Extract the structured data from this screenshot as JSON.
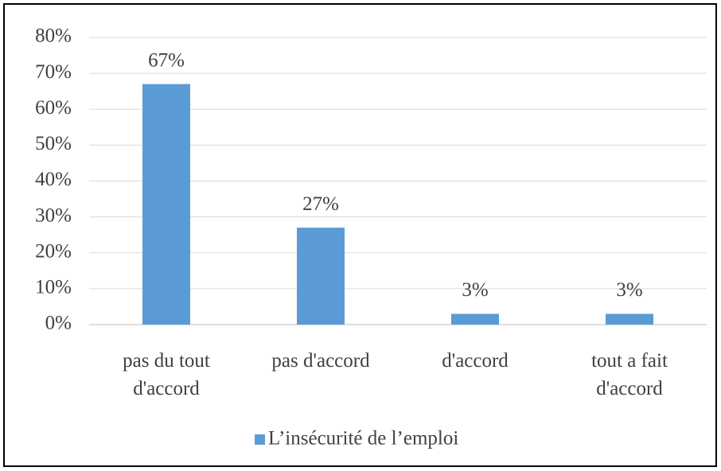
{
  "chart_data": {
    "type": "bar",
    "categories": [
      "pas du tout d'accord",
      "pas d'accord",
      "d'accord",
      "tout a fait d'accord"
    ],
    "series": [
      {
        "name": "L’insécurité de l’emploi",
        "color": "#5b9bd5",
        "values": [
          67,
          27,
          3,
          3
        ],
        "value_labels": [
          "67%",
          "27%",
          "3%",
          "3%"
        ]
      }
    ],
    "ylim": [
      0,
      80
    ],
    "yticks": [
      {
        "value": 0,
        "label": "0%"
      },
      {
        "value": 10,
        "label": "10%"
      },
      {
        "value": 20,
        "label": "20%"
      },
      {
        "value": 30,
        "label": "30%"
      },
      {
        "value": 40,
        "label": "40%"
      },
      {
        "value": 50,
        "label": "50%"
      },
      {
        "value": 60,
        "label": "60%"
      },
      {
        "value": 70,
        "label": "70%"
      },
      {
        "value": 80,
        "label": "80%"
      }
    ],
    "grid": true,
    "legend": "bottom"
  }
}
